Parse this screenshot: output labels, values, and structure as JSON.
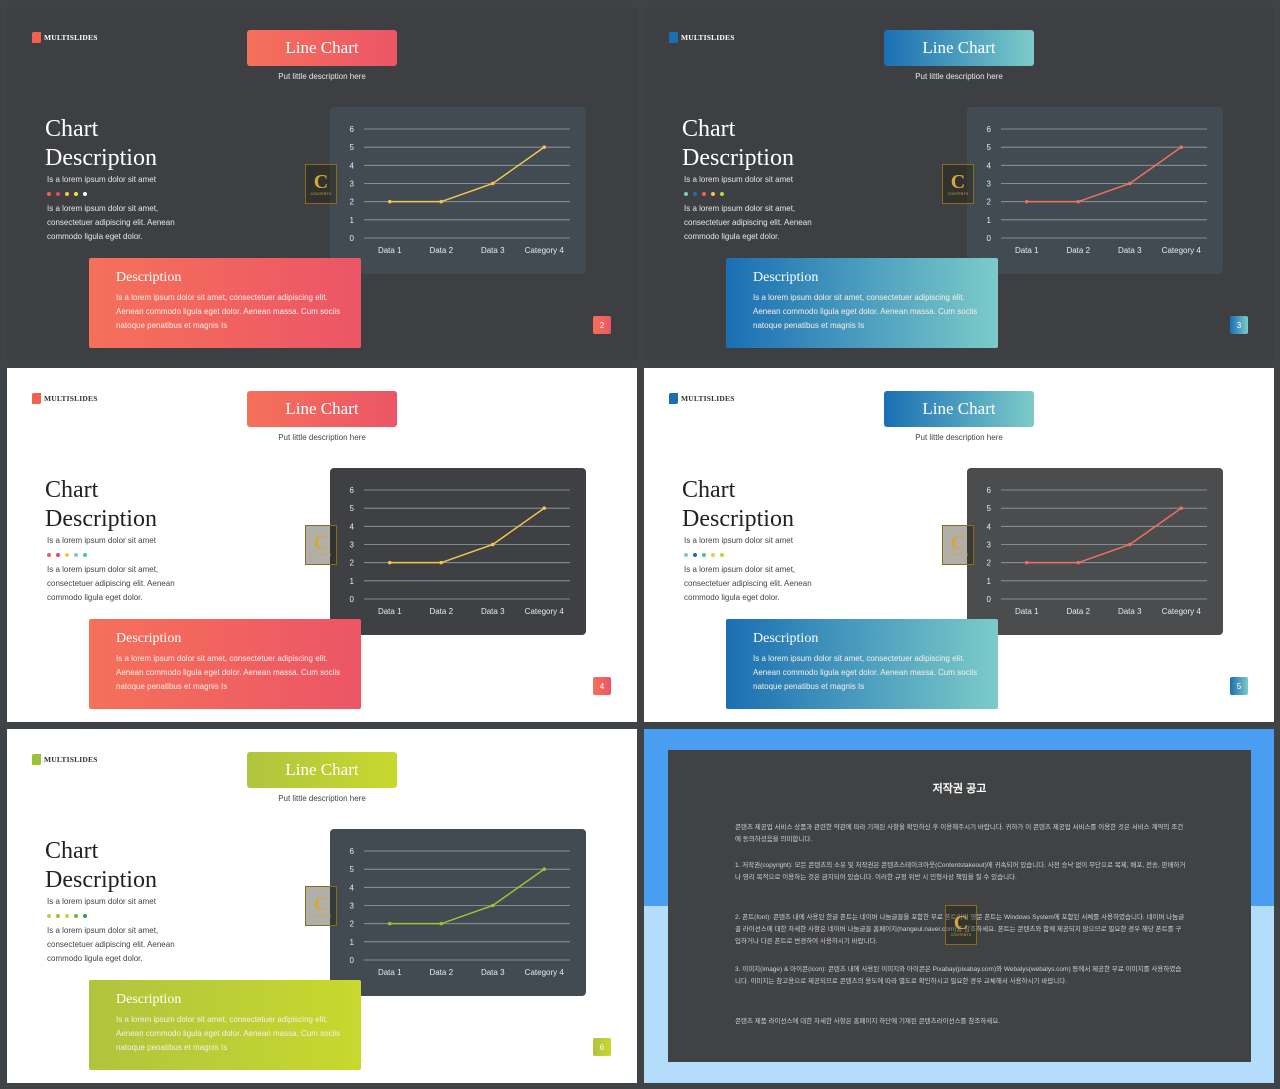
{
  "brand": {
    "name": "MULTISLIDES"
  },
  "badge": {
    "letter": "C",
    "caption": "CONTENTS"
  },
  "slides": [
    {
      "id": 1,
      "theme": "dark",
      "accent": [
        "#f5715a",
        "#ec5566"
      ],
      "logo_color": "#f2604f",
      "chart_bg": "#434b52",
      "line_color": "#f2c74e",
      "title": "Line Chart",
      "subtitle": "Put little description here",
      "heading_1": "Chart",
      "heading_2": "Description",
      "subhead": "Is a lorem ipsum dolor sit amet",
      "dot_colors": [
        "#f2604f",
        "#e64a66",
        "#f2c74e",
        "#f0e24a",
        "#ffffff"
      ],
      "body": "Is a lorem ipsum dolor sit amet, consectetuer adipiscing elit. Aenean commodo ligula eget dolor.",
      "desc_title": "Description",
      "desc_body": "Is a lorem ipsum dolor sit amet, consectetuer adipiscing elit. Aenean commodo ligula eget dolor. Aenean massa. Cum sociis natoque penatibus et magnis Is",
      "page": "2"
    },
    {
      "id": 2,
      "theme": "dark",
      "accent": [
        "#1a6fb3",
        "#7ccbc9"
      ],
      "logo_color": "#1a6fb3",
      "chart_bg": "#434b52",
      "line_color": "#f07060",
      "title": "Line Chart",
      "subtitle": "Put little description here",
      "heading_1": "Chart",
      "heading_2": "Description",
      "subhead": "Is a lorem ipsum dolor sit amet",
      "dot_colors": [
        "#7ccbc9",
        "#1a6fb3",
        "#f2604f",
        "#f2c74e",
        "#b8d441"
      ],
      "body": "Is a lorem ipsum dolor sit amet, consectetuer adipiscing elit. Aenean commodo ligula eget dolor.",
      "desc_title": "Description",
      "desc_body": "Is a lorem ipsum dolor sit amet, consectetuer adipiscing elit. Aenean commodo ligula eget dolor. Aenean massa. Cum sociis natoque penatibus et magnis Is",
      "page": "3"
    },
    {
      "id": 3,
      "theme": "light",
      "accent": [
        "#f5715a",
        "#ec5566"
      ],
      "logo_color": "#f2604f",
      "chart_bg": "#3f4043",
      "line_color": "#f2c74e",
      "title": "Line Chart",
      "subtitle": "Put little description here",
      "heading_1": "Chart",
      "heading_2": "Description",
      "subhead": "Is a lorem ipsum dolor sit amet",
      "dot_colors": [
        "#f2604f",
        "#e64a66",
        "#f2c74e",
        "#7ccbc9",
        "#46c79a"
      ],
      "body": "Is a lorem ipsum dolor sit amet, consectetuer adipiscing elit. Aenean commodo ligula eget dolor.",
      "desc_title": "Description",
      "desc_body": "Is a lorem ipsum dolor sit amet, consectetuer adipiscing elit. Aenean commodo ligula eget dolor. Aenean massa. Cum sociis natoque penatibus et magnis Is",
      "page": "4"
    },
    {
      "id": 4,
      "theme": "light",
      "accent": [
        "#1a6fb3",
        "#7ccbc9"
      ],
      "logo_color": "#1a6fb3",
      "chart_bg": "#4b4c4e",
      "line_color": "#f07060",
      "title": "Line Chart",
      "subtitle": "Put little description here",
      "heading_1": "Chart",
      "heading_2": "Description",
      "subhead": "Is a lorem ipsum dolor sit amet",
      "dot_colors": [
        "#7ccbc9",
        "#1a6fb3",
        "#46c79a",
        "#f2c74e",
        "#b8d441"
      ],
      "body": "Is a lorem ipsum dolor sit amet, consectetuer adipiscing elit. Aenean commodo ligula eget dolor.",
      "desc_title": "Description",
      "desc_body": "Is a lorem ipsum dolor sit amet, consectetuer adipiscing elit. Aenean commodo ligula eget dolor. Aenean massa. Cum sociis natoque penatibus et magnis Is",
      "page": "5"
    },
    {
      "id": 5,
      "theme": "light",
      "accent": [
        "#b0c43e",
        "#c8d82e"
      ],
      "logo_color": "#9cc23a",
      "chart_bg": "#434b52",
      "line_color": "#9cc23a",
      "title": "Line Chart",
      "subtitle": "Put little description here",
      "heading_1": "Chart",
      "heading_2": "Description",
      "subhead": "Is a lorem ipsum dolor sit amet",
      "dot_colors": [
        "#b8d441",
        "#9cc23a",
        "#c8d82e",
        "#6fb846",
        "#2f9e57"
      ],
      "body": "Is a lorem ipsum dolor sit amet, consectetuer adipiscing elit. Aenean commodo ligula eget dolor.",
      "desc_title": "Description",
      "desc_body": "Is a lorem ipsum dolor sit amet, consectetuer adipiscing elit. Aenean commodo ligula eget dolor. Aenean massa. Cum sociis natoque penatibus et magnis Is",
      "page": "6"
    }
  ],
  "chart_data": {
    "type": "line",
    "categories": [
      "Data 1",
      "Data 2",
      "Data 3",
      "Category 4"
    ],
    "values": [
      2,
      2,
      3,
      5
    ],
    "yticks": [
      0,
      1,
      2,
      3,
      4,
      5,
      6
    ],
    "ylim": [
      0,
      6
    ],
    "grid": true,
    "legend": "none"
  },
  "copyright": {
    "title": "저작권 공고",
    "p1": "콘텐츠 제공업 서비스 상품과 관련한 약관에 따라 기재된 사항을 확인하신 후 이용해주시기 바랍니다. 귀하가 이 콘텐츠 제공업 서비스를 이용한 것은 서비스 계약의 조건에 동의하셨음을 의미합니다.",
    "p2": "1. 저작권(copyright): 모든 콘텐츠의 소유 및 저작권은 콘텐츠스테이크아웃(Contentstakeout)에 귀속되어 있습니다. 사전 승낙 없이 무단으로 복제, 배포, 전송, 판매하거나 영리 목적으로 이용하는 것은 금지되어 있습니다. 이러한 규정 위반 시 민형사상 책임을 질 수 있습니다.",
    "p3": "2. 폰트(font): 콘텐츠 내에 사용된 한글 폰트는 네이버 나눔글꼴을 포함한 무료 폰트이며 영문 폰트는 Windows System에 포함된 서체를 사용하였습니다. 네이버 나눔글꼴 라이선스에 대한 자세한 사항은 네이버 나눔글꼴 홈페이지(hangeul.naver.com)를 참조하세요. 폰트는 콘텐츠와 함께 제공되지 않으므로 필요한 경우 해당 폰트를 구입하거나 다른 폰트로 변경하여 사용하시기 바랍니다.",
    "p4": "3. 이미지(image) & 아이콘(icon): 콘텐츠 내에 사용된 이미지와 아이콘은 Pixabay(pixabay.com)와 Webalys(webalys.com) 등에서 제공한 무료 이미지를 사용하였습니다. 이미지는 참고용으로 제공되므로 콘텐츠의 용도에 따라 별도로 확인하시고 필요한 경우 교체해서 사용하시기 바랍니다.",
    "p5": "콘텐츠 제품 라이선스에 대한 자세한 사항은 홈페이지 하단에 기재된 콘텐츠라이선스를 참조하세요."
  }
}
